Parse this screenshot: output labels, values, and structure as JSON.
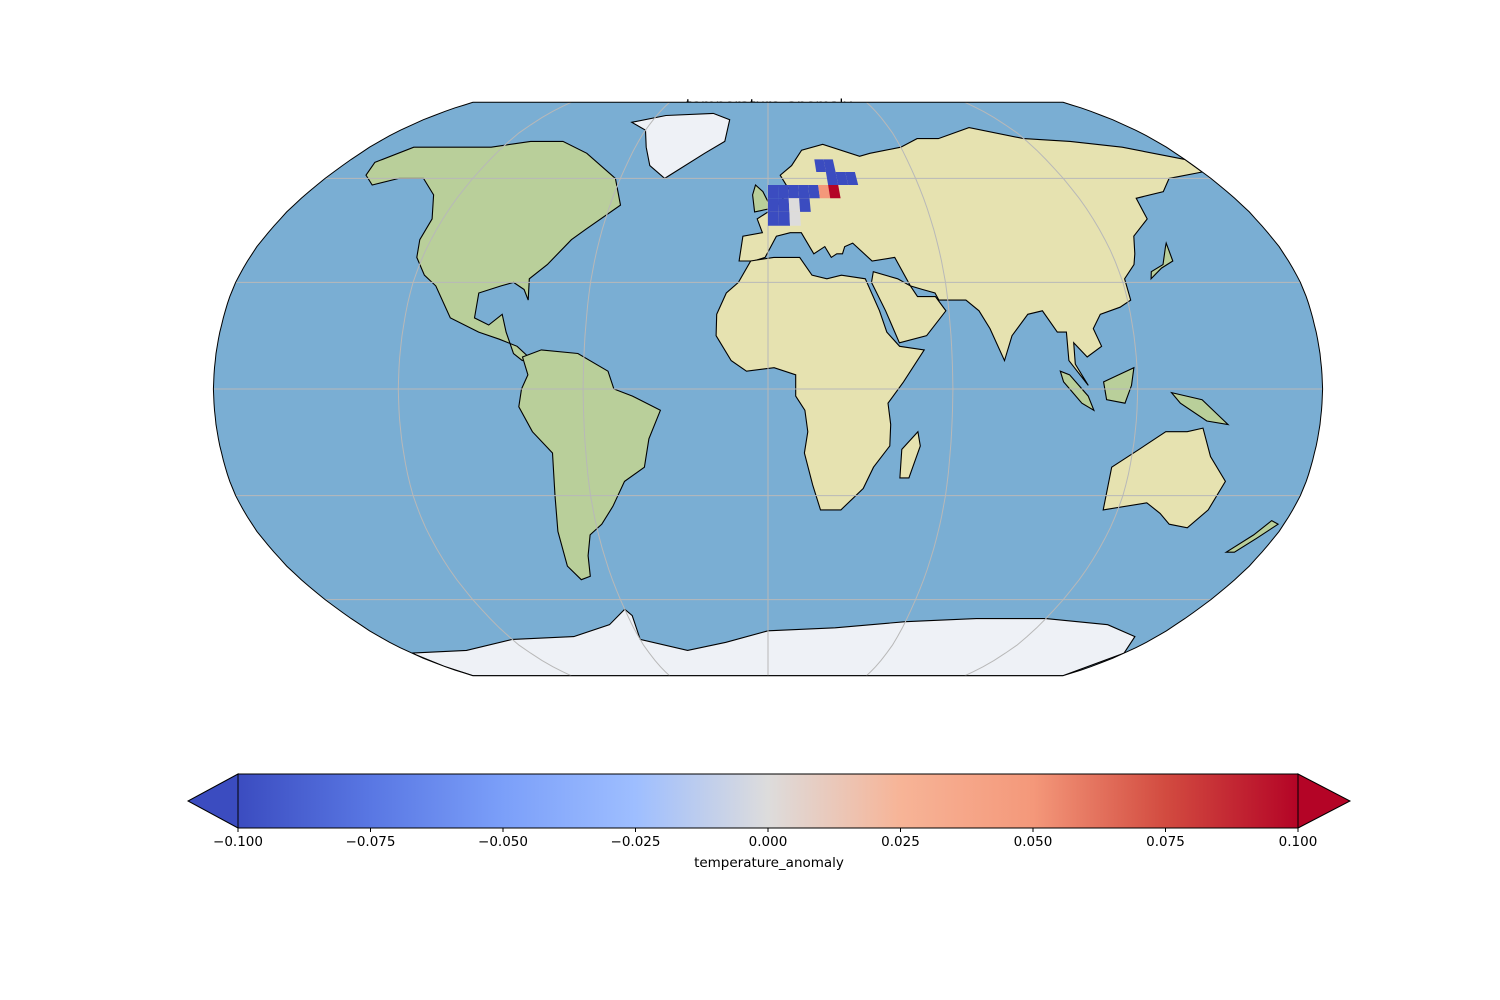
{
  "title": "temperature_anomaly",
  "colorbar": {
    "label": "temperature_anomaly",
    "min": -0.1,
    "max": 0.1,
    "extend": "both",
    "colormap": "coolwarm",
    "ticks": [
      "−0.100",
      "−0.075",
      "−0.050",
      "−0.025",
      "0.000",
      "0.025",
      "0.050",
      "0.075",
      "0.100"
    ]
  },
  "colors": {
    "ocean": "#7aaed3",
    "land": "#e6e2b0",
    "land_green": "#b9cf9a",
    "ice": "#eef1f6",
    "grid": "#b8b8b8",
    "cold": "#3b4cc0",
    "neutral": "#dddcdc",
    "warm": "#b40426"
  },
  "chart_data": {
    "type": "heatmap",
    "projection": "Robinson",
    "region_with_data": "Europe",
    "cells": [
      {
        "lon": 0,
        "lat": 54,
        "value": -0.1
      },
      {
        "lon": 4,
        "lat": 54,
        "value": -0.1
      },
      {
        "lon": 8,
        "lat": 54,
        "value": -0.1
      },
      {
        "lon": 12,
        "lat": 54,
        "value": -0.1
      },
      {
        "lon": 16,
        "lat": 54,
        "value": -0.1
      },
      {
        "lon": 20,
        "lat": 54,
        "value": 0.05
      },
      {
        "lon": 24,
        "lat": 54,
        "value": 0.1
      },
      {
        "lon": 0,
        "lat": 50,
        "value": -0.1
      },
      {
        "lon": 4,
        "lat": 50,
        "value": -0.1
      },
      {
        "lon": 8,
        "lat": 50,
        "value": 0.0
      },
      {
        "lon": 12,
        "lat": 50,
        "value": -0.1
      },
      {
        "lon": 0,
        "lat": 46,
        "value": -0.1
      },
      {
        "lon": 4,
        "lat": 46,
        "value": -0.1
      },
      {
        "lon": 8,
        "lat": 46,
        "value": 0.0
      },
      {
        "lon": 24,
        "lat": 58,
        "value": -0.1
      },
      {
        "lon": 28,
        "lat": 58,
        "value": -0.1
      },
      {
        "lon": 32,
        "lat": 58,
        "value": -0.1
      },
      {
        "lon": 20,
        "lat": 62,
        "value": -0.1
      },
      {
        "lon": 24,
        "lat": 62,
        "value": -0.1
      }
    ]
  }
}
